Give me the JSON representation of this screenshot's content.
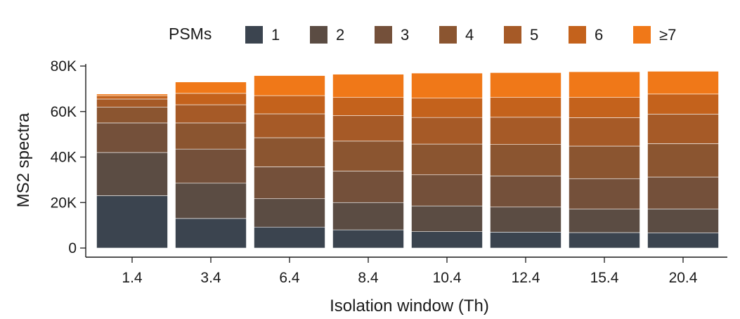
{
  "chart_data": {
    "type": "bar",
    "stacked": true,
    "title": "",
    "xlabel": "Isolation window (Th)",
    "ylabel": "MS2 spectra",
    "ylim": [
      0,
      80000
    ],
    "yticks": [
      0,
      20000,
      40000,
      60000,
      80000
    ],
    "ytick_labels": [
      "0",
      "20K",
      "40K",
      "60K",
      "80K"
    ],
    "categories": [
      "1.4",
      "3.4",
      "6.4",
      "8.4",
      "10.4",
      "12.4",
      "15.4",
      "20.4"
    ],
    "legend_title": "PSMs",
    "legend_position": "top",
    "grid": false,
    "series": [
      {
        "name": "1",
        "color": "#3b444f",
        "values": [
          23000,
          13000,
          9200,
          8000,
          7200,
          7000,
          6800,
          6700
        ]
      },
      {
        "name": "2",
        "color": "#5b4c43",
        "values": [
          19000,
          15500,
          12500,
          12000,
          11300,
          11000,
          10300,
          10500
        ]
      },
      {
        "name": "3",
        "color": "#74503a",
        "values": [
          13000,
          15000,
          14000,
          13800,
          13700,
          13700,
          13400,
          14000
        ]
      },
      {
        "name": "4",
        "color": "#8b5530",
        "values": [
          7000,
          11500,
          12800,
          13200,
          13500,
          13800,
          14300,
          14700
        ]
      },
      {
        "name": "5",
        "color": "#a65a27",
        "values": [
          3500,
          8000,
          10500,
          11200,
          11700,
          12000,
          12500,
          13000
        ]
      },
      {
        "name": "6",
        "color": "#c4621c",
        "values": [
          1500,
          5000,
          8000,
          8000,
          8500,
          8700,
          8900,
          8800
        ]
      },
      {
        "name": "≥7",
        "color": "#f07818",
        "values": [
          700,
          5000,
          8800,
          10200,
          11000,
          10900,
          11300,
          10000
        ]
      }
    ]
  }
}
